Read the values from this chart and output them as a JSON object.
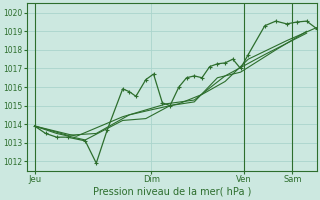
{
  "xlabel": "Pression niveau de la mer( hPa )",
  "bg_color": "#cce8e0",
  "grid_color": "#aad4cc",
  "line_color": "#2d6e2d",
  "label_color": "#2d6e2d",
  "spine_color": "#2d6e2d",
  "ylim": [
    1011.5,
    1020.5
  ],
  "yticks": [
    1012,
    1013,
    1014,
    1015,
    1016,
    1017,
    1018,
    1019,
    1020
  ],
  "xtick_labels": [
    "Jeu",
    "Dim",
    "Ven",
    "Sam"
  ],
  "xtick_positions": [
    62,
    168,
    252,
    296
  ],
  "plot_xlim": [
    55,
    318
  ],
  "vline_x": [
    62,
    252,
    296
  ],
  "series1_x": [
    62,
    72,
    82,
    92,
    108,
    118,
    128,
    142,
    148,
    154,
    163,
    170,
    178,
    185,
    193,
    200,
    207,
    214,
    221,
    228,
    235,
    242,
    249,
    256,
    271,
    281,
    291,
    300,
    309,
    318
  ],
  "series1_y": [
    1013.9,
    1013.5,
    1013.3,
    1013.3,
    1013.1,
    1011.9,
    1013.7,
    1015.9,
    1015.75,
    1015.5,
    1016.4,
    1016.7,
    1015.15,
    1015.0,
    1016.0,
    1016.5,
    1016.6,
    1016.5,
    1017.1,
    1017.25,
    1017.3,
    1017.5,
    1017.0,
    1017.75,
    1019.3,
    1019.55,
    1019.4,
    1019.5,
    1019.55,
    1019.15
  ],
  "series2_x": [
    62,
    82,
    108,
    142,
    163,
    185,
    207,
    228,
    249,
    281,
    309
  ],
  "series2_y": [
    1013.9,
    1013.5,
    1013.15,
    1014.2,
    1014.3,
    1015.0,
    1015.2,
    1016.5,
    1016.8,
    1018.0,
    1019.0
  ],
  "series3_x": [
    62,
    92,
    118,
    148,
    170,
    193,
    214,
    235,
    256,
    291,
    318
  ],
  "series3_y": [
    1013.9,
    1013.4,
    1013.5,
    1014.5,
    1014.8,
    1015.1,
    1015.6,
    1016.3,
    1017.5,
    1018.5,
    1019.2
  ],
  "series4_x": [
    62,
    100,
    142,
    182,
    207,
    235,
    271,
    309
  ],
  "series4_y": [
    1013.9,
    1013.35,
    1014.4,
    1015.1,
    1015.3,
    1016.6,
    1017.75,
    1018.9
  ]
}
